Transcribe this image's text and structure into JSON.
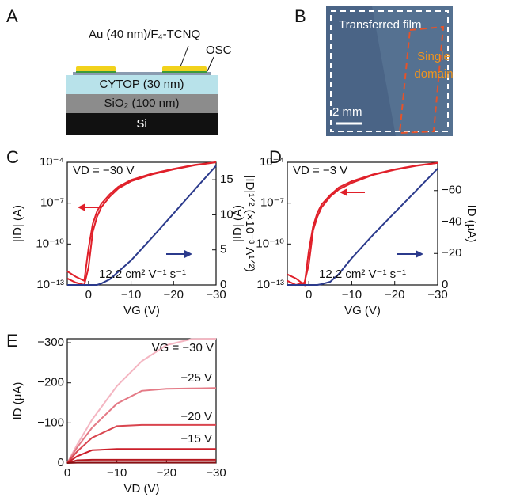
{
  "panels": [
    "A",
    "B",
    "C",
    "D",
    "E"
  ],
  "diagram": {
    "electrode": "Au (40 nm)/F₄-TCNQ",
    "osc": "OSC",
    "layers": [
      "CYTOP (30 nm)",
      "SiO₂ (100 nm)",
      "Si"
    ]
  },
  "image": {
    "film": "Transferred film",
    "domain": [
      "Single",
      "domain"
    ],
    "scale": "2 mm"
  },
  "chart_data": [
    {
      "type": "line",
      "ylog": true,
      "x": [
        5,
        3,
        1,
        0,
        -1,
        -2,
        -3,
        -5,
        -7,
        -10,
        -15,
        -20,
        -25,
        -30
      ],
      "xlim": [
        5,
        -30
      ],
      "xticks": [
        0,
        {
          "value": -10,
          "label": "−10"
        },
        {
          "value": -20,
          "label": "−20"
        },
        {
          "value": -30,
          "label": "−30"
        }
      ],
      "ylim": [
        1e-13,
        0.0001
      ],
      "yticks": [
        {
          "value": 1e-13,
          "label": "10⁻¹³"
        },
        {
          "value": 1e-10,
          "label": "10⁻¹⁰"
        },
        {
          "value": 1e-07,
          "label": "10⁻⁷"
        },
        {
          "value": 0.0001,
          "label": "10⁻⁴"
        }
      ],
      "y2lim": [
        0,
        17.5
      ],
      "y2ticks": [
        0,
        5,
        10,
        15
      ],
      "xlabel": "VG (V)",
      "ylabel": "|ID| (A)",
      "y2label": "|ID|¹ᐟ² (×10⁻³ A¹ᐟ²)",
      "annotations": [
        "VD = −30 V",
        "12.2 cm² V⁻¹ s⁻¹"
      ],
      "series": [
        {
          "color": "#e0202a",
          "values": [
            3e-13,
            1.5e-13,
            1e-13,
            2e-12,
            8e-10,
            1e-08,
            5e-08,
            3e-07,
            1.2e-06,
            4e-06,
            1.3e-05,
            3e-05,
            6e-05,
            0.0001
          ]
        },
        {
          "color": "#e0202a",
          "values": [
            1e-12,
            4e-13,
            2e-13,
            5e-11,
            3e-09,
            2.5e-08,
            9e-08,
            4.5e-07,
            1.6e-06,
            5e-06,
            1.5e-05,
            3.3e-05,
            6.5e-05,
            0.0001
          ]
        },
        {
          "color": "#2b3a8c",
          "axis": "y2",
          "values": [
            0,
            0,
            0,
            0,
            0,
            0,
            0.2,
            0.8,
            1.9,
            3.5,
            6.8,
            10.2,
            13.6,
            17
          ]
        }
      ]
    },
    {
      "type": "line",
      "ylog": true,
      "x": [
        5,
        3,
        1,
        0,
        -1,
        -2,
        -3,
        -5,
        -7,
        -10,
        -15,
        -20,
        -25,
        -30
      ],
      "xlim": [
        5,
        -30
      ],
      "xticks": [
        0,
        {
          "value": -10,
          "label": "−10"
        },
        {
          "value": -20,
          "label": "−20"
        },
        {
          "value": -30,
          "label": "−30"
        }
      ],
      "ylim": [
        1e-13,
        0.0001
      ],
      "yticks": [
        {
          "value": 1e-13,
          "label": "10⁻¹³"
        },
        {
          "value": 1e-10,
          "label": "10⁻¹⁰"
        },
        {
          "value": 1e-07,
          "label": "10⁻⁷"
        },
        {
          "value": 0.0001,
          "label": "10⁻⁴"
        }
      ],
      "y2lim": [
        0,
        -78
      ],
      "y2ticks": [
        0,
        {
          "value": -20,
          "label": "−20"
        },
        {
          "value": -40,
          "label": "−40"
        },
        {
          "value": -60,
          "label": "−60"
        }
      ],
      "xlabel": "VG (V)",
      "ylabel": "|ID| (A)",
      "y2label": "ID (μA)",
      "annotations": [
        "VD = −3 V",
        "12.2 cm² V⁻¹ s⁻¹"
      ],
      "series": [
        {
          "color": "#e0202a",
          "values": [
            2e-13,
            1e-13,
            1.5e-13,
            3e-12,
            1e-09,
            1e-08,
            5e-08,
            3e-07,
            1e-06,
            3e-06,
            1.2e-05,
            2.8e-05,
            5.5e-05,
            9e-05
          ]
        },
        {
          "color": "#e0202a",
          "values": [
            6e-13,
            3e-13,
            1e-13,
            3e-11,
            2e-09,
            2e-08,
            8e-08,
            4e-07,
            1.4e-06,
            4e-06,
            1.3e-05,
            3e-05,
            5.8e-05,
            9e-05
          ]
        },
        {
          "color": "#2b3a8c",
          "axis": "y2",
          "values": [
            0,
            0,
            0,
            0,
            0,
            0,
            -0.5,
            -2,
            -7,
            -17,
            -32,
            -46,
            -60,
            -74
          ]
        }
      ]
    },
    {
      "type": "line",
      "x": [
        0,
        -2,
        -5,
        -10,
        -15,
        -20,
        -25,
        -30
      ],
      "xlim": [
        0,
        -30
      ],
      "xticks": [
        0,
        {
          "value": -10,
          "label": "−10"
        },
        {
          "value": -20,
          "label": "−20"
        },
        {
          "value": -30,
          "label": "−30"
        }
      ],
      "ylim": [
        0,
        -310
      ],
      "yticks": [
        0,
        {
          "value": -100,
          "label": "−100"
        },
        {
          "value": -200,
          "label": "−200"
        },
        {
          "value": -300,
          "label": "−300"
        }
      ],
      "xlabel": "VD (V)",
      "ylabel": "ID (μA)",
      "annotations": [
        "VG = −30 V",
        "−25 V",
        "−20 V",
        "−15 V"
      ],
      "series": [
        {
          "color": "#f4b6c2",
          "values": [
            0,
            -46,
            -108,
            -192,
            -254,
            -294,
            -309,
            -310
          ]
        },
        {
          "color": "#e47a86",
          "values": [
            0,
            -39,
            -88,
            -148,
            -180,
            -185,
            -186,
            -187
          ]
        },
        {
          "color": "#d9454f",
          "values": [
            0,
            -29,
            -63,
            -92,
            -95,
            -95,
            -95,
            -95
          ]
        },
        {
          "color": "#cc1f2a",
          "values": [
            0,
            -17,
            -32,
            -35,
            -35,
            -35,
            -35,
            -35
          ]
        },
        {
          "color": "#b51a20",
          "values": [
            0,
            -7,
            -8,
            -8,
            -8,
            -8,
            -8,
            -8
          ]
        },
        {
          "color": "#8b0e12",
          "values": [
            0,
            -1,
            -1,
            -1,
            -1,
            -1,
            -1,
            -1
          ]
        }
      ]
    }
  ]
}
